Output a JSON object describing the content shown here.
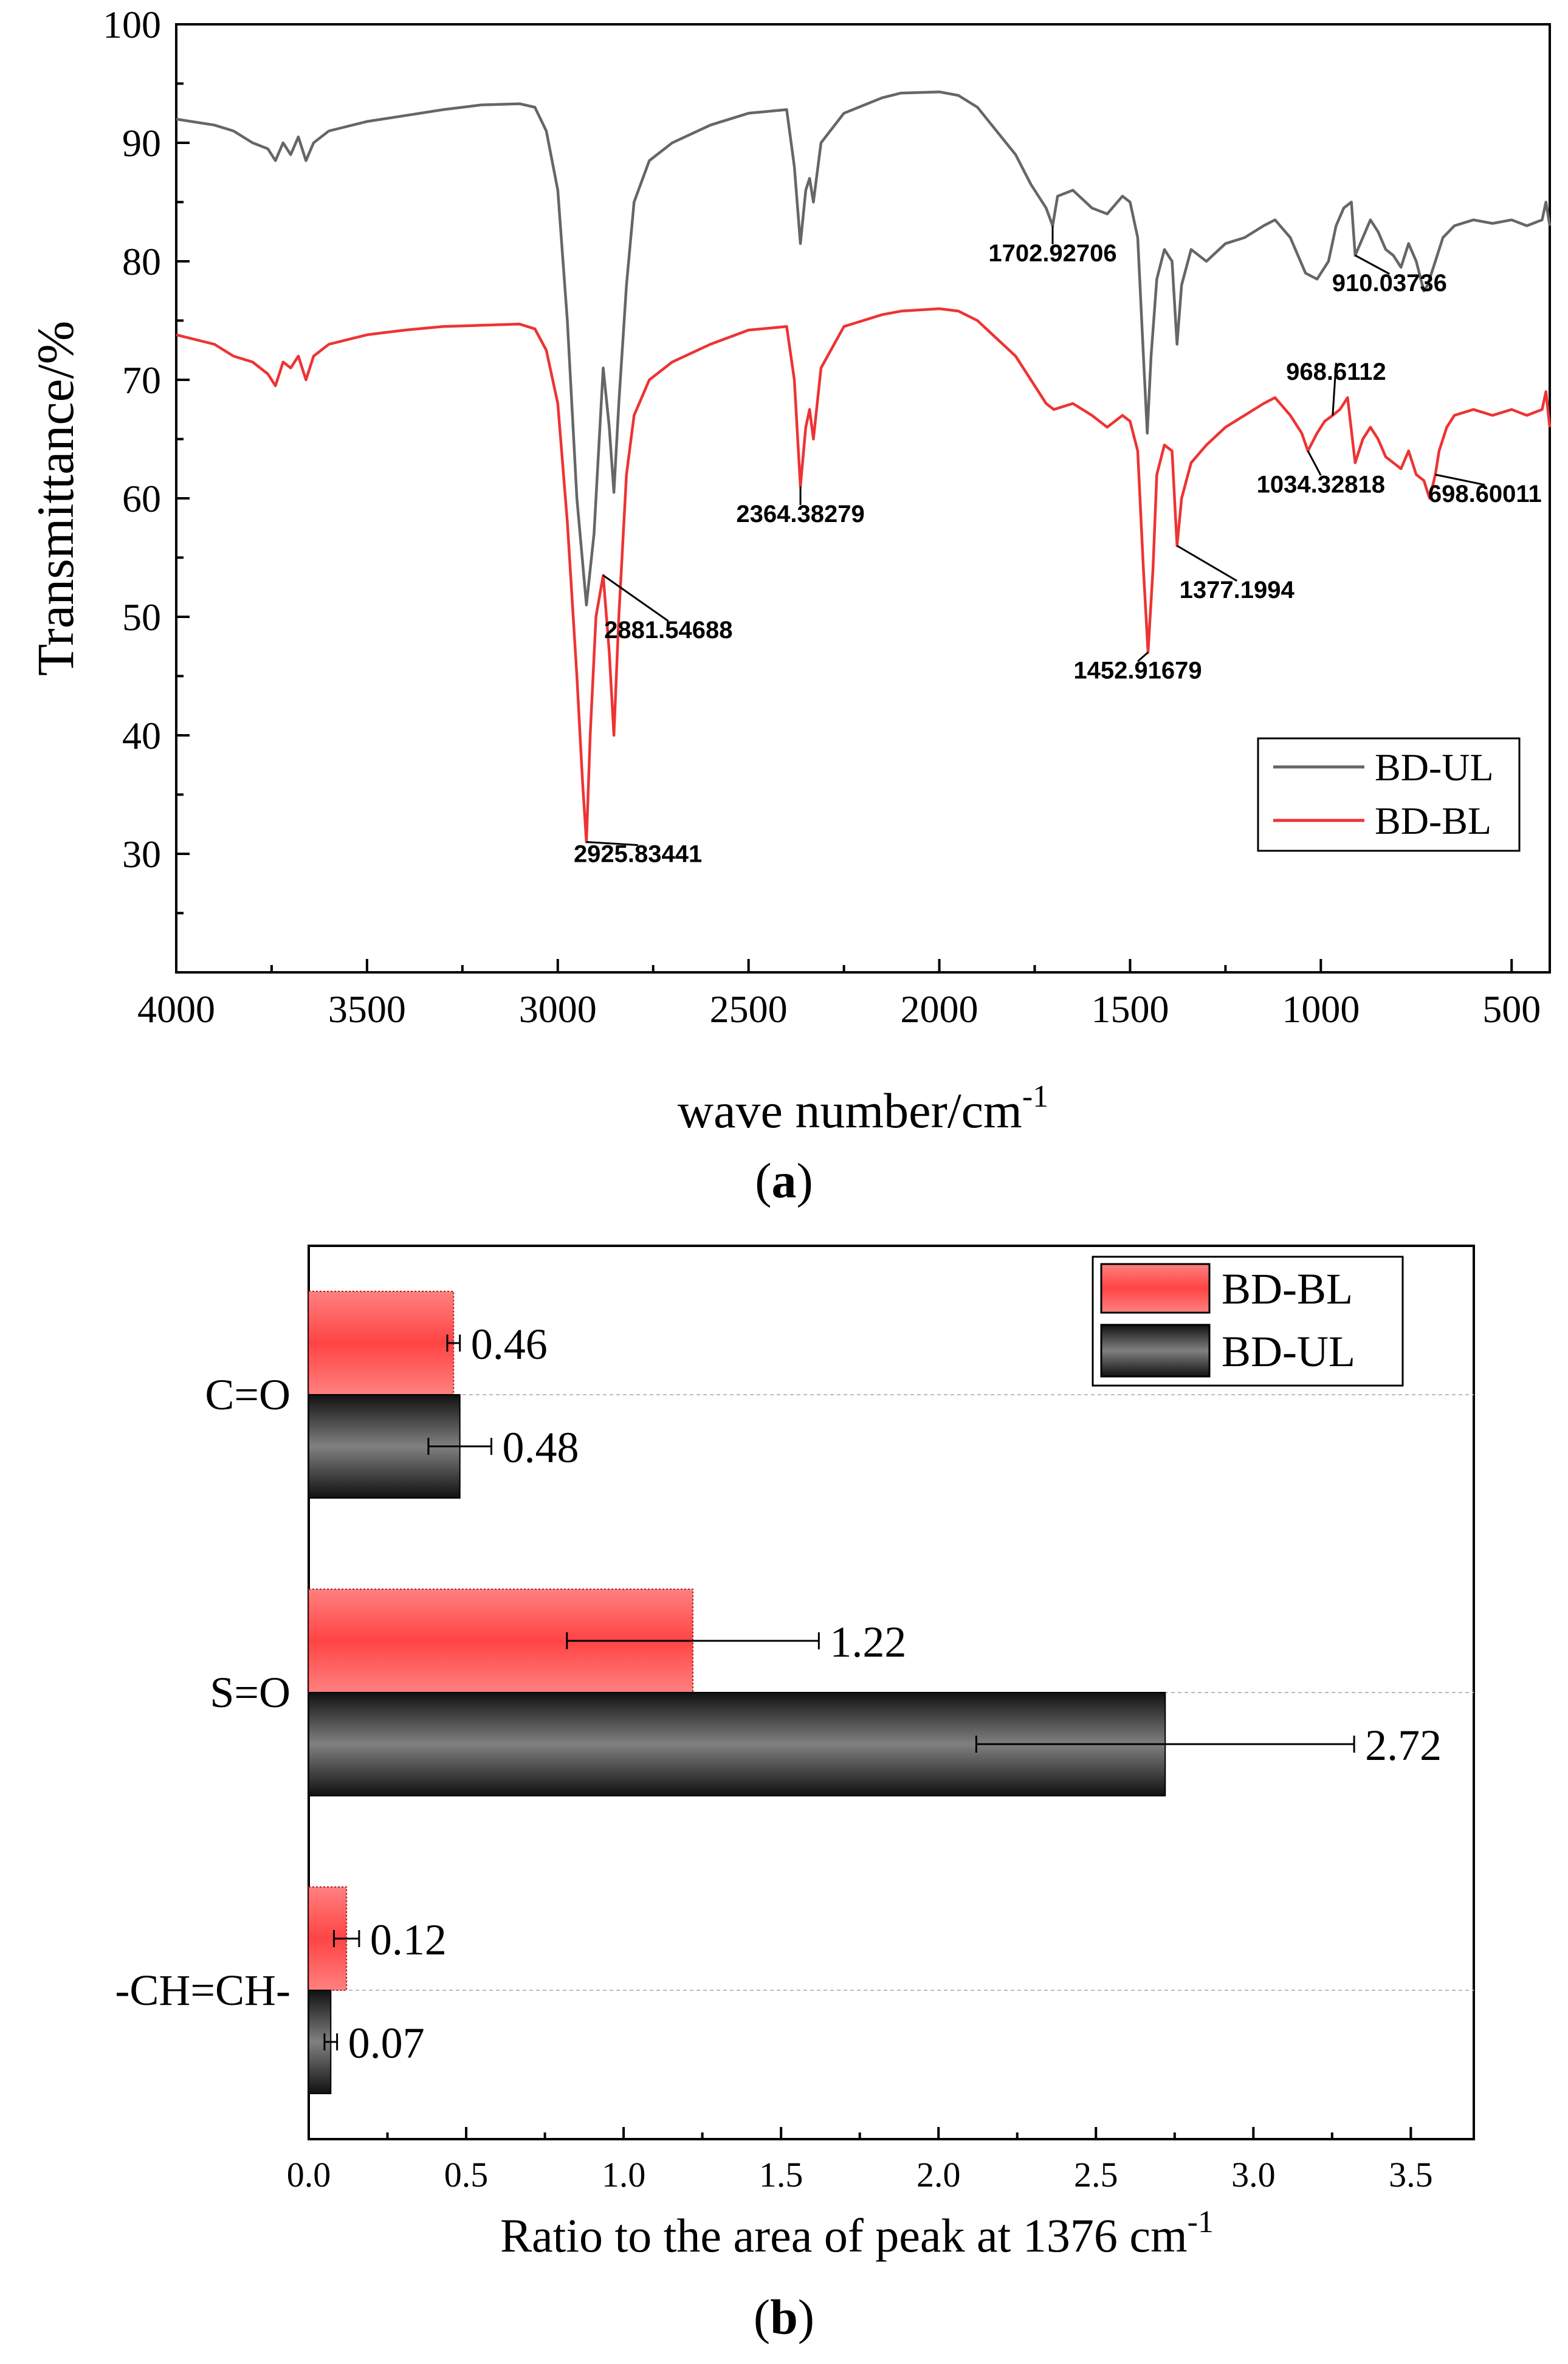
{
  "panels": {
    "a": {
      "label_open": "(",
      "label_letter": "a",
      "label_close": ")",
      "xlabel_main": "wave number/cm",
      "xlabel_sup": "-1",
      "ylabel": "Transmittance/%",
      "legend": [
        "BD-UL",
        "BD-BL"
      ]
    },
    "b": {
      "label_open": "(",
      "label_letter": "b",
      "label_close": ")",
      "xlabel_main": "Ratio to the area of peak at 1376 cm",
      "xlabel_sup": "-1",
      "legend": [
        "BD-BL",
        "BD-UL"
      ]
    }
  },
  "chart_data": [
    {
      "type": "line",
      "xlabel": "wave number/cm-1",
      "ylabel": "Transmittance/%",
      "xlim": [
        4000,
        400
      ],
      "ylim": [
        20,
        100
      ],
      "x_ticks": [
        4000,
        3500,
        3000,
        2500,
        2000,
        1500,
        1000,
        500
      ],
      "y_ticks": [
        30,
        40,
        50,
        60,
        70,
        80,
        90,
        100
      ],
      "legend_position": "bottom-right",
      "series": [
        {
          "name": "BD-UL",
          "color": "#666666",
          "points": [
            [
              4000,
              92.0
            ],
            [
              3900,
              91.5
            ],
            [
              3850,
              91.0
            ],
            [
              3800,
              90.0
            ],
            [
              3760,
              89.5
            ],
            [
              3740,
              88.5
            ],
            [
              3720,
              90.0
            ],
            [
              3700,
              89.0
            ],
            [
              3680,
              90.5
            ],
            [
              3660,
              88.5
            ],
            [
              3640,
              90.0
            ],
            [
              3600,
              91.0
            ],
            [
              3500,
              91.8
            ],
            [
              3400,
              92.3
            ],
            [
              3300,
              92.8
            ],
            [
              3200,
              93.2
            ],
            [
              3100,
              93.3
            ],
            [
              3060,
              93.0
            ],
            [
              3030,
              91.0
            ],
            [
              3000,
              86.0
            ],
            [
              2975,
              75.0
            ],
            [
              2950,
              60.0
            ],
            [
              2925,
              51.0
            ],
            [
              2905,
              57.0
            ],
            [
              2881,
              71.0
            ],
            [
              2865,
              66.0
            ],
            [
              2853,
              60.5
            ],
            [
              2840,
              68.0
            ],
            [
              2820,
              78.0
            ],
            [
              2800,
              85.0
            ],
            [
              2760,
              88.5
            ],
            [
              2700,
              90.0
            ],
            [
              2600,
              91.5
            ],
            [
              2500,
              92.5
            ],
            [
              2400,
              92.8
            ],
            [
              2380,
              88.0
            ],
            [
              2364,
              81.5
            ],
            [
              2350,
              86.0
            ],
            [
              2340,
              87.0
            ],
            [
              2330,
              85.0
            ],
            [
              2310,
              90.0
            ],
            [
              2250,
              92.5
            ],
            [
              2150,
              93.8
            ],
            [
              2100,
              94.2
            ],
            [
              2000,
              94.3
            ],
            [
              1950,
              94.0
            ],
            [
              1900,
              93.0
            ],
            [
              1850,
              91.0
            ],
            [
              1800,
              89.0
            ],
            [
              1760,
              86.5
            ],
            [
              1720,
              84.5
            ],
            [
              1703,
              83.0
            ],
            [
              1690,
              85.5
            ],
            [
              1650,
              86.0
            ],
            [
              1600,
              84.5
            ],
            [
              1560,
              84.0
            ],
            [
              1520,
              85.5
            ],
            [
              1500,
              85.0
            ],
            [
              1480,
              82.0
            ],
            [
              1465,
              72.0
            ],
            [
              1455,
              65.5
            ],
            [
              1445,
              72.0
            ],
            [
              1430,
              78.5
            ],
            [
              1410,
              81.0
            ],
            [
              1390,
              80.0
            ],
            [
              1377,
              73.0
            ],
            [
              1365,
              78.0
            ],
            [
              1340,
              81.0
            ],
            [
              1300,
              80.0
            ],
            [
              1250,
              81.5
            ],
            [
              1200,
              82.0
            ],
            [
              1150,
              83.0
            ],
            [
              1120,
              83.5
            ],
            [
              1080,
              82.0
            ],
            [
              1040,
              79.0
            ],
            [
              1010,
              78.5
            ],
            [
              980,
              80.0
            ],
            [
              960,
              83.0
            ],
            [
              940,
              84.5
            ],
            [
              920,
              85.0
            ],
            [
              910,
              80.5
            ],
            [
              890,
              82.0
            ],
            [
              870,
              83.5
            ],
            [
              850,
              82.5
            ],
            [
              830,
              81.0
            ],
            [
              810,
              80.5
            ],
            [
              790,
              79.5
            ],
            [
              770,
              81.5
            ],
            [
              750,
              80.0
            ],
            [
              730,
              77.5
            ],
            [
              720,
              78.0
            ],
            [
              700,
              80.0
            ],
            [
              680,
              82.0
            ],
            [
              650,
              83.0
            ],
            [
              600,
              83.5
            ],
            [
              550,
              83.2
            ],
            [
              500,
              83.5
            ],
            [
              460,
              83.0
            ],
            [
              420,
              83.5
            ],
            [
              410,
              85.0
            ],
            [
              400,
              83.0
            ]
          ]
        },
        {
          "name": "BD-BL",
          "color": "#ee3333",
          "points": [
            [
              4000,
              73.8
            ],
            [
              3900,
              73.0
            ],
            [
              3850,
              72.0
            ],
            [
              3800,
              71.5
            ],
            [
              3760,
              70.5
            ],
            [
              3740,
              69.5
            ],
            [
              3720,
              71.5
            ],
            [
              3700,
              71.0
            ],
            [
              3680,
              72.0
            ],
            [
              3660,
              70.0
            ],
            [
              3640,
              72.0
            ],
            [
              3600,
              73.0
            ],
            [
              3500,
              73.8
            ],
            [
              3400,
              74.2
            ],
            [
              3300,
              74.5
            ],
            [
              3200,
              74.6
            ],
            [
              3100,
              74.7
            ],
            [
              3060,
              74.3
            ],
            [
              3030,
              72.5
            ],
            [
              3000,
              68.0
            ],
            [
              2975,
              58.0
            ],
            [
              2950,
              45.0
            ],
            [
              2935,
              36.0
            ],
            [
              2925,
              31.0
            ],
            [
              2915,
              40.0
            ],
            [
              2900,
              50.0
            ],
            [
              2881,
              53.5
            ],
            [
              2865,
              47.0
            ],
            [
              2853,
              40.0
            ],
            [
              2840,
              50.0
            ],
            [
              2820,
              62.0
            ],
            [
              2800,
              67.0
            ],
            [
              2760,
              70.0
            ],
            [
              2700,
              71.5
            ],
            [
              2600,
              73.0
            ],
            [
              2500,
              74.2
            ],
            [
              2400,
              74.5
            ],
            [
              2380,
              70.0
            ],
            [
              2364,
              61.0
            ],
            [
              2350,
              66.0
            ],
            [
              2340,
              67.5
            ],
            [
              2330,
              65.0
            ],
            [
              2310,
              71.0
            ],
            [
              2250,
              74.5
            ],
            [
              2150,
              75.5
            ],
            [
              2100,
              75.8
            ],
            [
              2000,
              76.0
            ],
            [
              1950,
              75.8
            ],
            [
              1900,
              75.0
            ],
            [
              1850,
              73.5
            ],
            [
              1800,
              72.0
            ],
            [
              1760,
              70.0
            ],
            [
              1720,
              68.0
            ],
            [
              1700,
              67.5
            ],
            [
              1650,
              68.0
            ],
            [
              1600,
              67.0
            ],
            [
              1560,
              66.0
            ],
            [
              1520,
              67.0
            ],
            [
              1500,
              66.5
            ],
            [
              1480,
              64.0
            ],
            [
              1465,
              54.0
            ],
            [
              1453,
              47.0
            ],
            [
              1440,
              54.0
            ],
            [
              1430,
              62.0
            ],
            [
              1410,
              64.5
            ],
            [
              1390,
              64.0
            ],
            [
              1377,
              56.0
            ],
            [
              1365,
              60.0
            ],
            [
              1340,
              63.0
            ],
            [
              1300,
              64.5
            ],
            [
              1250,
              66.0
            ],
            [
              1200,
              67.0
            ],
            [
              1150,
              68.0
            ],
            [
              1120,
              68.5
            ],
            [
              1080,
              67.0
            ],
            [
              1050,
              65.5
            ],
            [
              1034,
              64.0
            ],
            [
              1010,
              65.5
            ],
            [
              990,
              66.5
            ],
            [
              969,
              67.0
            ],
            [
              950,
              67.5
            ],
            [
              930,
              68.5
            ],
            [
              910,
              63.0
            ],
            [
              890,
              65.0
            ],
            [
              870,
              66.0
            ],
            [
              850,
              65.0
            ],
            [
              830,
              63.5
            ],
            [
              810,
              63.0
            ],
            [
              790,
              62.5
            ],
            [
              770,
              64.0
            ],
            [
              750,
              62.0
            ],
            [
              730,
              61.5
            ],
            [
              715,
              60.0
            ],
            [
              700,
              62.0
            ],
            [
              690,
              64.0
            ],
            [
              670,
              66.0
            ],
            [
              650,
              67.0
            ],
            [
              600,
              67.5
            ],
            [
              550,
              67.0
            ],
            [
              500,
              67.5
            ],
            [
              460,
              67.0
            ],
            [
              420,
              67.5
            ],
            [
              410,
              69.0
            ],
            [
              400,
              66.0
            ]
          ]
        }
      ],
      "annotations": [
        {
          "text": "2925.83441",
          "x": 2925,
          "y": 31,
          "label_x": 2790,
          "label_y": 29.3
        },
        {
          "text": "2881.54688",
          "x": 2881,
          "y": 53.5,
          "label_x": 2710,
          "label_y": 48.2
        },
        {
          "text": "2364.38279",
          "x": 2364,
          "y": 61,
          "label_x": 2364,
          "label_y": 58.0
        },
        {
          "text": "1702.92706",
          "x": 1703,
          "y": 83,
          "label_x": 1703,
          "label_y": 80.0
        },
        {
          "text": "910.03736",
          "x": 910,
          "y": 80.5,
          "label_x": 820,
          "label_y": 77.5
        },
        {
          "text": "968.6112",
          "x": 969,
          "y": 67,
          "label_x": 960,
          "label_y": 70.0
        },
        {
          "text": "1034.32818",
          "x": 1034,
          "y": 64,
          "label_x": 1000,
          "label_y": 60.5
        },
        {
          "text": "698.60011",
          "x": 700,
          "y": 62,
          "label_x": 570,
          "label_y": 59.7
        },
        {
          "text": "1377.1994",
          "x": 1377,
          "y": 56,
          "label_x": 1220,
          "label_y": 51.6
        },
        {
          "text": "1452.91679",
          "x": 1453,
          "y": 47,
          "label_x": 1480,
          "label_y": 44.8
        }
      ]
    },
    {
      "type": "bar",
      "orientation": "horizontal",
      "categories": [
        "C=O",
        "S=O",
        "-CH=CH-"
      ],
      "xlabel": "Ratio to the area of peak at 1376 cm-1",
      "xlim": [
        0,
        3.7
      ],
      "x_ticks": [
        "0.0",
        "0.5",
        "1.0",
        "1.5",
        "2.0",
        "2.5",
        "3.0",
        "3.5"
      ],
      "legend_position": "top-right",
      "series": [
        {
          "name": "BD-BL",
          "color": "#ff5555",
          "values": [
            0.46,
            1.22,
            0.12
          ],
          "errors": [
            0.02,
            0.4,
            0.04
          ],
          "labels": [
            "0.46",
            "1.22",
            "0.12"
          ]
        },
        {
          "name": "BD-UL",
          "color": "#555555",
          "values": [
            0.48,
            2.72,
            0.07
          ],
          "errors": [
            0.1,
            0.6,
            0.02
          ],
          "labels": [
            "0.48",
            "2.72",
            "0.07"
          ]
        }
      ]
    }
  ]
}
